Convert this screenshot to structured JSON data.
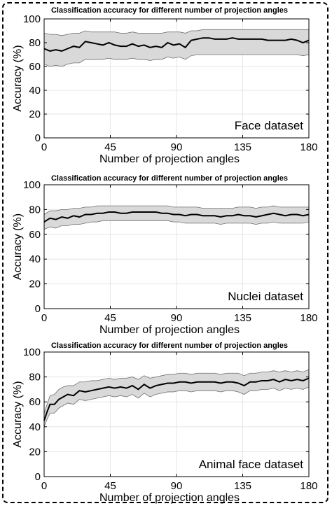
{
  "chart_data": [
    {
      "type": "line",
      "title": "Classification accuracy for different number of projection angles",
      "xlabel": "Number of projection angles",
      "ylabel": "Accuracy (%)",
      "annotation": "Face dataset",
      "xlim": [
        0,
        180
      ],
      "ylim": [
        0,
        100
      ],
      "xticks": [
        0,
        45,
        90,
        135,
        180
      ],
      "yticks": [
        0,
        20,
        40,
        60,
        80,
        100
      ],
      "grid": true,
      "series": [
        {
          "x": [
            0,
            4,
            8,
            12,
            16,
            20,
            24,
            28,
            32,
            36,
            40,
            44,
            48,
            52,
            56,
            60,
            64,
            68,
            72,
            76,
            80,
            84,
            88,
            92,
            96,
            100,
            104,
            108,
            112,
            116,
            120,
            124,
            128,
            132,
            136,
            140,
            144,
            148,
            152,
            156,
            160,
            164,
            168,
            172,
            176,
            180
          ],
          "y": [
            75,
            73,
            74,
            73,
            75,
            77,
            76,
            81,
            80,
            79,
            78,
            80,
            78,
            77,
            77,
            79,
            77,
            78,
            76,
            77,
            76,
            80,
            78,
            79,
            76,
            82,
            83,
            84,
            84,
            83,
            83,
            83,
            84,
            83,
            83,
            83,
            83,
            83,
            82,
            82,
            82,
            82,
            83,
            82,
            80,
            82
          ],
          "band_upper": [
            88,
            87,
            87,
            86,
            87,
            88,
            88,
            90,
            89,
            89,
            89,
            89,
            89,
            88,
            88,
            89,
            88,
            88,
            88,
            88,
            88,
            89,
            89,
            89,
            88,
            90,
            90,
            91,
            91,
            91,
            91,
            91,
            91,
            91,
            91,
            91,
            91,
            91,
            91,
            91,
            91,
            91,
            91,
            91,
            91,
            91
          ],
          "band_lower": [
            62,
            60,
            61,
            60,
            62,
            63,
            63,
            66,
            66,
            66,
            66,
            67,
            66,
            66,
            66,
            67,
            66,
            66,
            65,
            66,
            66,
            68,
            67,
            68,
            66,
            69,
            70,
            70,
            70,
            70,
            70,
            70,
            70,
            70,
            70,
            70,
            70,
            70,
            70,
            70,
            70,
            70,
            70,
            70,
            69,
            70
          ]
        }
      ]
    },
    {
      "type": "line",
      "title": "Classification accuracy for different number of projection angles",
      "xlabel": "Number of projection angles",
      "ylabel": "Accuracy (%)",
      "annotation": "Nuclei dataset",
      "xlim": [
        0,
        180
      ],
      "ylim": [
        0,
        100
      ],
      "xticks": [
        0,
        45,
        90,
        135,
        180
      ],
      "yticks": [
        0,
        20,
        40,
        60,
        80,
        100
      ],
      "grid": true,
      "series": [
        {
          "x": [
            0,
            4,
            8,
            12,
            16,
            20,
            24,
            28,
            32,
            36,
            40,
            44,
            48,
            52,
            56,
            60,
            64,
            68,
            72,
            76,
            80,
            84,
            88,
            92,
            96,
            100,
            104,
            108,
            112,
            116,
            120,
            124,
            128,
            132,
            136,
            140,
            144,
            148,
            152,
            156,
            160,
            164,
            168,
            172,
            176,
            180
          ],
          "y": [
            70,
            73,
            72,
            74,
            73,
            75,
            74,
            76,
            76,
            77,
            77,
            78,
            78,
            77,
            77,
            78,
            78,
            78,
            78,
            78,
            77,
            77,
            76,
            76,
            75,
            76,
            76,
            75,
            75,
            75,
            74,
            75,
            75,
            76,
            75,
            75,
            74,
            75,
            76,
            77,
            76,
            75,
            76,
            76,
            75,
            76
          ],
          "band_upper": [
            76,
            79,
            79,
            80,
            80,
            81,
            81,
            82,
            82,
            83,
            83,
            83,
            83,
            83,
            83,
            83,
            83,
            83,
            83,
            83,
            83,
            83,
            82,
            82,
            82,
            82,
            82,
            81,
            81,
            81,
            81,
            81,
            81,
            82,
            82,
            82,
            81,
            82,
            82,
            83,
            82,
            82,
            82,
            82,
            82,
            82
          ],
          "band_lower": [
            64,
            66,
            65,
            67,
            67,
            68,
            68,
            69,
            70,
            70,
            71,
            71,
            71,
            71,
            71,
            71,
            71,
            71,
            71,
            71,
            71,
            71,
            70,
            70,
            69,
            69,
            69,
            69,
            69,
            69,
            68,
            69,
            69,
            69,
            69,
            69,
            68,
            69,
            69,
            70,
            69,
            69,
            69,
            69,
            69,
            70
          ]
        }
      ]
    },
    {
      "type": "line",
      "title": "Classification accuracy for different number of projection angles",
      "xlabel": "Number of projection angles",
      "ylabel": "Accuracy (%)",
      "annotation": "Animal face dataset",
      "xlim": [
        0,
        180
      ],
      "ylim": [
        0,
        100
      ],
      "xticks": [
        0,
        45,
        90,
        135,
        180
      ],
      "yticks": [
        0,
        20,
        40,
        60,
        80,
        100
      ],
      "grid": true,
      "series": [
        {
          "x": [
            0,
            2,
            4,
            7,
            10,
            13,
            16,
            20,
            24,
            28,
            32,
            36,
            40,
            44,
            48,
            52,
            56,
            60,
            64,
            68,
            72,
            76,
            80,
            84,
            88,
            92,
            96,
            100,
            104,
            108,
            112,
            116,
            120,
            124,
            128,
            132,
            136,
            140,
            144,
            148,
            152,
            156,
            160,
            164,
            168,
            172,
            176,
            180
          ],
          "y": [
            45,
            52,
            58,
            58,
            62,
            64,
            66,
            65,
            69,
            68,
            69,
            70,
            71,
            72,
            71,
            72,
            71,
            73,
            70,
            74,
            71,
            73,
            74,
            75,
            75,
            76,
            76,
            75,
            76,
            76,
            76,
            76,
            75,
            76,
            76,
            75,
            73,
            76,
            76,
            77,
            77,
            78,
            76,
            78,
            77,
            78,
            77,
            79
          ],
          "band_upper": [
            51,
            58,
            65,
            66,
            70,
            72,
            73,
            73,
            76,
            76,
            77,
            77,
            78,
            79,
            78,
            79,
            79,
            80,
            78,
            81,
            79,
            80,
            81,
            82,
            82,
            83,
            83,
            82,
            83,
            83,
            83,
            83,
            82,
            83,
            83,
            83,
            81,
            83,
            83,
            84,
            84,
            85,
            84,
            85,
            84,
            85,
            84,
            86
          ],
          "band_lower": [
            40,
            46,
            51,
            51,
            55,
            57,
            59,
            58,
            62,
            61,
            62,
            63,
            64,
            65,
            64,
            65,
            64,
            66,
            63,
            67,
            64,
            66,
            67,
            68,
            68,
            69,
            69,
            68,
            69,
            69,
            69,
            69,
            68,
            69,
            69,
            68,
            66,
            69,
            69,
            70,
            70,
            71,
            69,
            71,
            70,
            71,
            70,
            72
          ]
        }
      ]
    }
  ]
}
